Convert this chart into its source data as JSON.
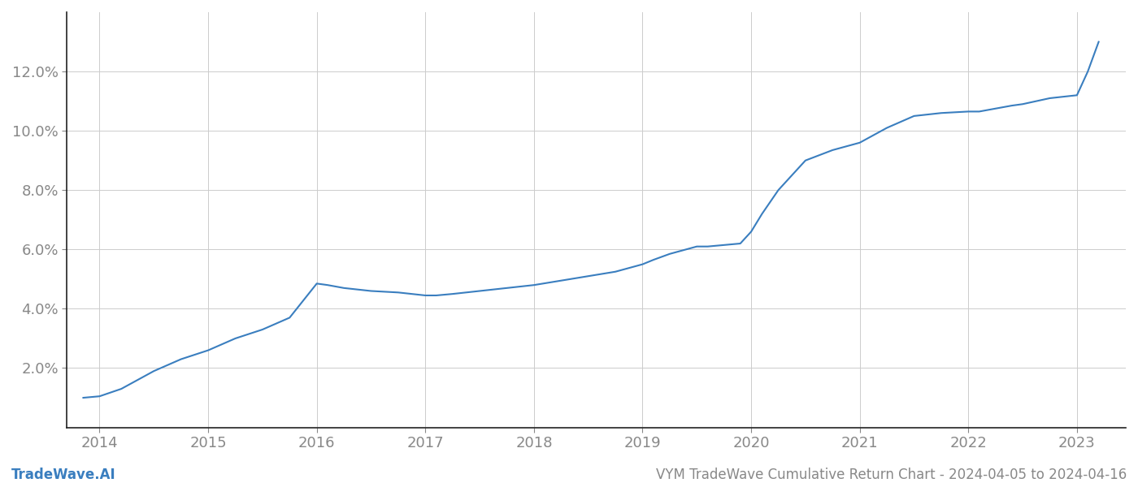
{
  "x_years": [
    2013.85,
    2014.0,
    2014.2,
    2014.5,
    2014.75,
    2015.0,
    2015.25,
    2015.5,
    2015.75,
    2016.0,
    2016.1,
    2016.25,
    2016.5,
    2016.75,
    2017.0,
    2017.1,
    2017.25,
    2017.5,
    2017.75,
    2018.0,
    2018.25,
    2018.5,
    2018.75,
    2019.0,
    2019.1,
    2019.25,
    2019.4,
    2019.5,
    2019.6,
    2019.75,
    2019.9,
    2020.0,
    2020.1,
    2020.25,
    2020.5,
    2020.75,
    2021.0,
    2021.25,
    2021.5,
    2021.75,
    2022.0,
    2022.1,
    2022.25,
    2022.4,
    2022.5,
    2022.75,
    2023.0,
    2023.1,
    2023.2
  ],
  "y_values": [
    1.0,
    1.05,
    1.3,
    1.9,
    2.3,
    2.6,
    3.0,
    3.3,
    3.7,
    4.85,
    4.8,
    4.7,
    4.6,
    4.55,
    4.45,
    4.45,
    4.5,
    4.6,
    4.7,
    4.8,
    4.95,
    5.1,
    5.25,
    5.5,
    5.65,
    5.85,
    6.0,
    6.1,
    6.1,
    6.15,
    6.2,
    6.6,
    7.2,
    8.0,
    9.0,
    9.35,
    9.6,
    10.1,
    10.5,
    10.6,
    10.65,
    10.65,
    10.75,
    10.85,
    10.9,
    11.1,
    11.2,
    12.0,
    13.0
  ],
  "line_color": "#3a7ebf",
  "line_width": 1.5,
  "background_color": "#ffffff",
  "grid_color": "#cccccc",
  "tick_color": "#888888",
  "footer_left": "TradeWave.AI",
  "footer_right": "VYM TradeWave Cumulative Return Chart - 2024-04-05 to 2024-04-16",
  "footer_color": "#888888",
  "footer_left_color": "#3a7ebf",
  "xlim": [
    2013.7,
    2023.45
  ],
  "ylim": [
    0.0,
    14.0
  ],
  "ytick_labels": [
    "2.0%",
    "4.0%",
    "6.0%",
    "8.0%",
    "10.0%",
    "12.0%"
  ],
  "ytick_values": [
    2.0,
    4.0,
    6.0,
    8.0,
    10.0,
    12.0
  ],
  "xtick_labels": [
    "2014",
    "2015",
    "2016",
    "2017",
    "2018",
    "2019",
    "2020",
    "2021",
    "2022",
    "2023"
  ],
  "xtick_values": [
    2014,
    2015,
    2016,
    2017,
    2018,
    2019,
    2020,
    2021,
    2022,
    2023
  ],
  "tick_fontsize": 13,
  "footer_fontsize": 12
}
